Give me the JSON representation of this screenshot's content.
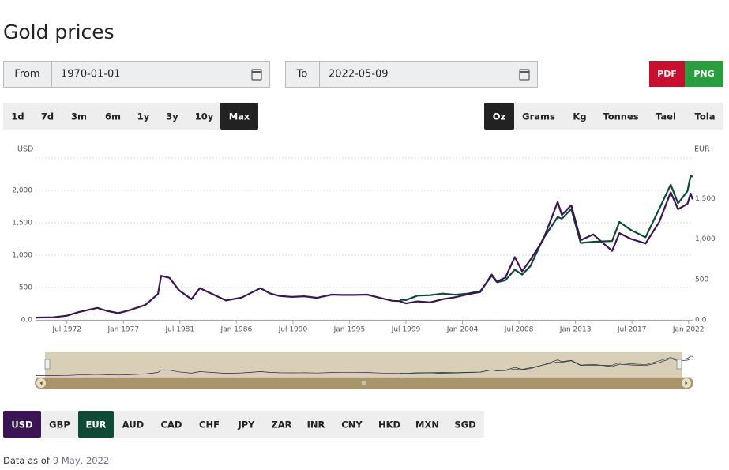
{
  "title": "Gold prices",
  "date_range": {
    "from_label": "From",
    "from_value": "1970-01-01",
    "to_label": "To",
    "to_value": "2022-05-09"
  },
  "export_buttons": [
    "PDF",
    "PNG"
  ],
  "ranges": {
    "items": [
      "1d",
      "7d",
      "3m",
      "6m",
      "1y",
      "3y",
      "10y",
      "Max"
    ],
    "selected": 7
  },
  "units": {
    "items": [
      "Oz",
      "Grams",
      "Kg",
      "Tonnes",
      "Tael",
      "Tola"
    ],
    "selected": 0
  },
  "currencies": [
    "USD",
    "GBP",
    "EUR",
    "AUD",
    "CAD",
    "CHF",
    "JPY",
    "ZAR",
    "INR",
    "CNY",
    "HKD",
    "MXN",
    "SGD"
  ],
  "footer": {
    "label": "Data as of",
    "date": "9 May, 2022"
  },
  "chart_data": {
    "type": "line",
    "ylabel": "USD",
    "y2label": "EUR",
    "grid": true,
    "x": [
      "1970-01",
      "1971-06",
      "1972-07",
      "1973-06",
      "1974-12",
      "1975-09",
      "1976-08",
      "1977-06",
      "1978-10",
      "1979-10",
      "1980-01",
      "1980-09",
      "1981-06",
      "1982-06",
      "1983-02",
      "1984-06",
      "1985-03",
      "1986-06",
      "1987-12",
      "1988-09",
      "1989-06",
      "1990-06",
      "1991-06",
      "1992-06",
      "1993-08",
      "1994-06",
      "1995-06",
      "1996-06",
      "1997-06",
      "1998-06",
      "1999-01",
      "1999-07",
      "2000-06",
      "2001-06",
      "2002-06",
      "2003-06",
      "2004-06",
      "2005-06",
      "2006-05",
      "2006-10",
      "2007-06",
      "2008-03",
      "2008-10",
      "2009-06",
      "2010-06",
      "2011-08",
      "2011-12",
      "2012-09",
      "2013-06",
      "2014-06",
      "2015-12",
      "2016-07",
      "2017-06",
      "2018-08",
      "2019-09",
      "2020-08",
      "2021-03",
      "2021-12",
      "2022-03",
      "2022-05"
    ],
    "series": [
      {
        "name": "USD",
        "color": "#3b1456",
        "values": [
          35,
          40,
          65,
          120,
          185,
          140,
          105,
          145,
          230,
          400,
          680,
          650,
          460,
          320,
          490,
          370,
          300,
          345,
          490,
          410,
          370,
          355,
          365,
          340,
          390,
          385,
          385,
          390,
          340,
          295,
          290,
          255,
          285,
          270,
          320,
          350,
          395,
          430,
          700,
          590,
          655,
          970,
          750,
          930,
          1230,
          1820,
          1620,
          1770,
          1230,
          1320,
          1065,
          1340,
          1250,
          1180,
          1510,
          1970,
          1710,
          1790,
          1950,
          1860
        ]
      },
      {
        "name": "EUR",
        "color": "#0e4a35",
        "axis": "y2",
        "values": [
          null,
          null,
          null,
          null,
          null,
          null,
          null,
          null,
          null,
          null,
          null,
          null,
          null,
          null,
          null,
          null,
          null,
          null,
          null,
          null,
          null,
          null,
          null,
          null,
          null,
          null,
          null,
          null,
          null,
          null,
          250,
          245,
          300,
          305,
          325,
          310,
          325,
          355,
          545,
          465,
          490,
          620,
          560,
          665,
          1000,
          1270,
          1250,
          1370,
          950,
          965,
          975,
          1210,
          1110,
          1020,
          1370,
          1670,
          1440,
          1590,
          1780,
          1770
        ]
      }
    ],
    "xlim": [
      "1970-01",
      "2022-05"
    ],
    "xticks": [
      {
        "value": "1972-07",
        "label": "Jul 1972"
      },
      {
        "value": "1977-01",
        "label": "Jan 1977"
      },
      {
        "value": "1981-07",
        "label": "Jul 1981"
      },
      {
        "value": "1986-01",
        "label": "Jan 1986"
      },
      {
        "value": "1990-07",
        "label": "Jul 1990"
      },
      {
        "value": "1995-01",
        "label": "Jan 1995"
      },
      {
        "value": "1999-07",
        "label": "Jul 1999"
      },
      {
        "value": "2004-01",
        "label": "Jan 2004"
      },
      {
        "value": "2008-07",
        "label": "Jul 2008"
      },
      {
        "value": "2013-01",
        "label": "Jan 2013"
      },
      {
        "value": "2017-07",
        "label": "Jul 2017"
      },
      {
        "value": "2022-01",
        "label": "Jan 2022"
      }
    ],
    "ylim": [
      0,
      2500
    ],
    "yticks": [
      {
        "value": 0,
        "label": "0.0"
      },
      500,
      {
        "value": 1000,
        "label": "1,000"
      },
      {
        "value": 1500,
        "label": "1,500"
      },
      {
        "value": 2000,
        "label": "2,000"
      },
      {
        "value": 2500,
        "label": ""
      }
    ],
    "y2lim": [
      0,
      2000
    ],
    "y2ticks": [
      {
        "value": 0,
        "label": "0.0"
      },
      500,
      {
        "value": 1000,
        "label": "1,000"
      },
      {
        "value": 1500,
        "label": "1,500"
      }
    ]
  }
}
